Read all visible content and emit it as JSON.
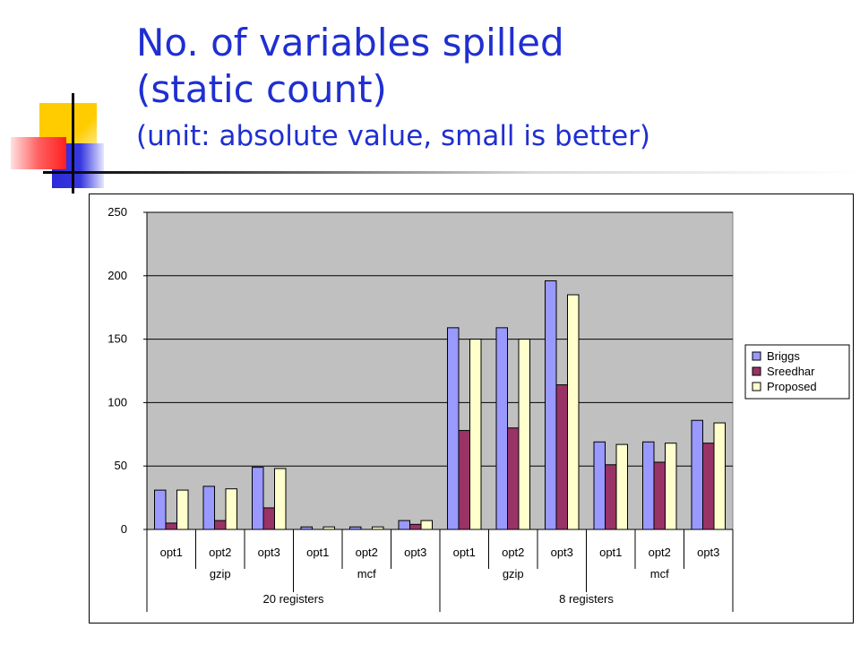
{
  "slide": {
    "title_line1": "No. of variables spilled",
    "title_line2": "(static count)",
    "title_line3": "(unit: absolute value, small is better)",
    "title_color": "#1f2fd1"
  },
  "chart_data": {
    "type": "bar",
    "categories": [
      "opt1",
      "opt2",
      "opt3",
      "opt1",
      "opt2",
      "opt3",
      "opt1",
      "opt2",
      "opt3",
      "opt1",
      "opt2",
      "opt3"
    ],
    "group_level2": [
      "gzip",
      "mcf",
      "gzip",
      "mcf"
    ],
    "group_level1": [
      "20 registers",
      "8 registers"
    ],
    "series": [
      {
        "name": "Briggs",
        "color": "#9999ff",
        "values": [
          31,
          34,
          49,
          2,
          2,
          7,
          159,
          159,
          196,
          69,
          69,
          86
        ]
      },
      {
        "name": "Sreedhar",
        "color": "#993366",
        "values": [
          5,
          7,
          17,
          0,
          0,
          4,
          78,
          80,
          114,
          51,
          53,
          68
        ]
      },
      {
        "name": "Proposed",
        "color": "#ffffcc",
        "values": [
          31,
          32,
          48,
          2,
          2,
          7,
          150,
          150,
          185,
          67,
          68,
          84
        ]
      }
    ],
    "yticks": [
      0,
      50,
      100,
      150,
      200,
      250
    ],
    "ylim": [
      0,
      250
    ],
    "plot_bg": "#c0c0c0",
    "grid": true,
    "legend_position": "right"
  }
}
